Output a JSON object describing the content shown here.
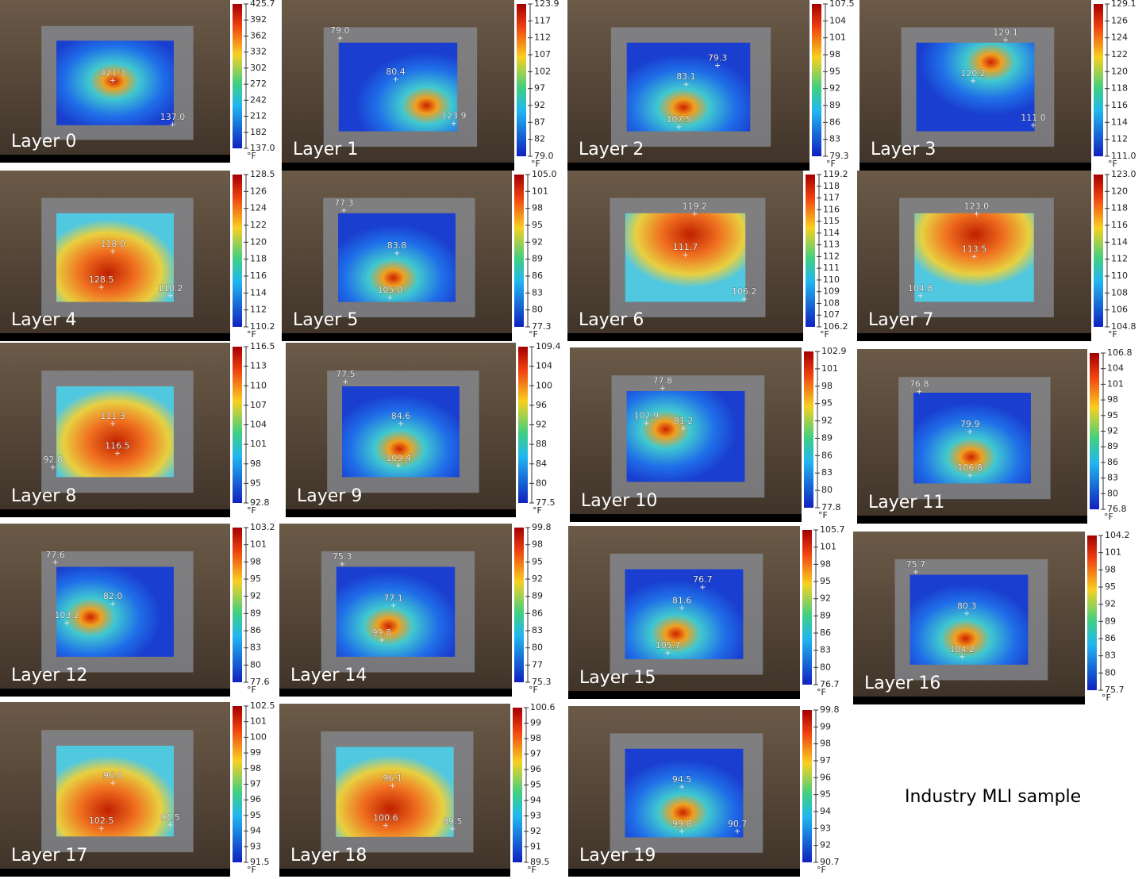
{
  "panels": [
    {
      "label": "Layer 0",
      "annotations": [
        "421.3",
        "137.0"
      ],
      "scale": [
        "425.7",
        "392",
        "362",
        "332",
        "302",
        "272",
        "242",
        "212",
        "182",
        "137.0"
      ],
      "unit": "°F"
    },
    {
      "label": "Layer 1",
      "annotations": [
        "79.0",
        "80.4",
        "123.9"
      ],
      "scale": [
        "123.9",
        "117",
        "112",
        "107",
        "102",
        "97",
        "92",
        "87",
        "82",
        "79.0"
      ],
      "unit": "°F"
    },
    {
      "label": "Layer 2",
      "annotations": [
        "79.3",
        "83.1",
        "107.5"
      ],
      "scale": [
        "107.5",
        "104",
        "101",
        "98",
        "95",
        "92",
        "89",
        "86",
        "83",
        "79.3"
      ],
      "unit": "°F"
    },
    {
      "label": "Layer 3",
      "annotations": [
        "129.1",
        "120.2",
        "111.0"
      ],
      "scale": [
        "129.1",
        "126",
        "124",
        "122",
        "120",
        "118",
        "116",
        "114",
        "112",
        "111.0"
      ],
      "unit": "°F"
    },
    {
      "label": "Layer 4",
      "annotations": [
        "118.0",
        "128.5",
        "110.2"
      ],
      "scale": [
        "128.5",
        "126",
        "124",
        "122",
        "120",
        "118",
        "116",
        "114",
        "112",
        "110.2"
      ],
      "unit": "°F"
    },
    {
      "label": "Layer 5",
      "annotations": [
        "77.3",
        "83.8",
        "105.0"
      ],
      "scale": [
        "105.0",
        "101",
        "98",
        "95",
        "92",
        "89",
        "86",
        "83",
        "80",
        "77.3"
      ],
      "unit": "°F"
    },
    {
      "label": "Layer 6",
      "annotations": [
        "119.2",
        "111.7",
        "106.2"
      ],
      "scale": [
        "119.2",
        "118",
        "117",
        "116",
        "115",
        "114",
        "113",
        "112",
        "111",
        "110",
        "109",
        "108",
        "107",
        "106.2"
      ],
      "unit": "°F"
    },
    {
      "label": "Layer 7",
      "annotations": [
        "123.0",
        "113.5",
        "104.8"
      ],
      "scale": [
        "123.0",
        "120",
        "118",
        "116",
        "114",
        "112",
        "110",
        "108",
        "106",
        "104.8"
      ],
      "unit": "°F"
    },
    {
      "label": "Layer 8",
      "annotations": [
        "111.3",
        "116.5",
        "92.8"
      ],
      "scale": [
        "116.5",
        "113",
        "110",
        "107",
        "104",
        "101",
        "98",
        "95",
        "92.8"
      ],
      "unit": "°F"
    },
    {
      "label": "Layer 9",
      "annotations": [
        "77.5",
        "84.6",
        "109.4"
      ],
      "scale": [
        "109.4",
        "104",
        "100",
        "96",
        "92",
        "88",
        "84",
        "80",
        "77.5"
      ],
      "unit": "°F"
    },
    {
      "label": "Layer 10",
      "annotations": [
        "77.8",
        "102.9",
        "81.2"
      ],
      "scale": [
        "102.9",
        "101",
        "98",
        "95",
        "92",
        "89",
        "86",
        "83",
        "80",
        "77.8"
      ],
      "unit": "°F"
    },
    {
      "label": "Layer 11",
      "annotations": [
        "76.8",
        "79.9",
        "106.8"
      ],
      "scale": [
        "106.8",
        "104",
        "101",
        "98",
        "95",
        "92",
        "89",
        "86",
        "83",
        "80",
        "76.8"
      ],
      "unit": "°F"
    },
    {
      "label": "Layer 12",
      "annotations": [
        "77.6",
        "82.0",
        "103.2"
      ],
      "scale": [
        "103.2",
        "101",
        "98",
        "95",
        "92",
        "89",
        "86",
        "83",
        "80",
        "77.6"
      ],
      "unit": "°F"
    },
    {
      "label": "Layer 14",
      "annotations": [
        "75.3",
        "77.1",
        "99.8"
      ],
      "scale": [
        "99.8",
        "98",
        "95",
        "92",
        "89",
        "86",
        "83",
        "80",
        "77",
        "75.3"
      ],
      "unit": "°F"
    },
    {
      "label": "Layer 15",
      "annotations": [
        "76.7",
        "81.6",
        "105.7"
      ],
      "scale": [
        "105.7",
        "101",
        "98",
        "95",
        "92",
        "89",
        "86",
        "83",
        "80",
        "76.7"
      ],
      "unit": "°F"
    },
    {
      "label": "Layer 16",
      "annotations": [
        "75.7",
        "80.3",
        "104.2"
      ],
      "scale": [
        "104.2",
        "101",
        "98",
        "95",
        "92",
        "89",
        "86",
        "83",
        "80",
        "75.7"
      ],
      "unit": "°F"
    },
    {
      "label": "Layer 17",
      "annotations": [
        "96.0",
        "102.5",
        "91.5"
      ],
      "scale": [
        "102.5",
        "101",
        "100",
        "99",
        "98",
        "97",
        "96",
        "95",
        "94",
        "93",
        "91.5"
      ],
      "unit": "°F"
    },
    {
      "label": "Layer 18",
      "annotations": [
        "96.1",
        "100.6",
        "89.5"
      ],
      "scale": [
        "100.6",
        "99",
        "98",
        "97",
        "96",
        "95",
        "94",
        "93",
        "92",
        "91",
        "89.5"
      ],
      "unit": "°F"
    },
    {
      "label": "Layer 19",
      "annotations": [
        "94.5",
        "99.8",
        "90.7"
      ],
      "scale": [
        "99.8",
        "99",
        "98",
        "97",
        "96",
        "95",
        "94",
        "93",
        "92",
        "90.7"
      ],
      "unit": "°F"
    }
  ],
  "caption": "Industry MLI sample"
}
